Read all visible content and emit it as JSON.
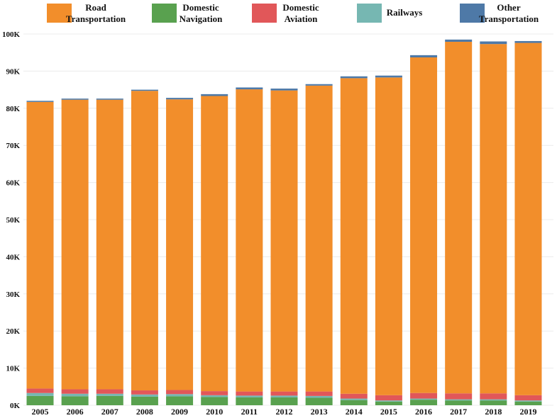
{
  "chart_data": {
    "type": "bar",
    "stacked": true,
    "categories": [
      "2005",
      "2006",
      "2007",
      "2008",
      "2009",
      "2010",
      "2011",
      "2012",
      "2013",
      "2014",
      "2015",
      "2016",
      "2017",
      "2018",
      "2019"
    ],
    "yticks": [
      {
        "value": 0,
        "label": "0K"
      },
      {
        "value": 10000,
        "label": "10K"
      },
      {
        "value": 20000,
        "label": "20K"
      },
      {
        "value": 30000,
        "label": "30K"
      },
      {
        "value": 40000,
        "label": "40K"
      },
      {
        "value": 50000,
        "label": "50K"
      },
      {
        "value": 60000,
        "label": "60K"
      },
      {
        "value": 70000,
        "label": "70K"
      },
      {
        "value": 80000,
        "label": "80K"
      },
      {
        "value": 90000,
        "label": "90K"
      },
      {
        "value": 100000,
        "label": "100K"
      }
    ],
    "ylim": [
      0,
      103000
    ],
    "grid": true,
    "legend_position": "top",
    "series": [
      {
        "name": "Domestic Navigation",
        "legend_lines": [
          "Domestic",
          "Navigation"
        ],
        "color": "#59a14f",
        "values": [
          2500,
          2400,
          2500,
          2300,
          2400,
          2200,
          2100,
          2100,
          2000,
          1400,
          1000,
          1500,
          1300,
          1300,
          1000
        ]
      },
      {
        "name": "Railways",
        "legend_lines": [
          "Railways"
        ],
        "color": "#76b7b2",
        "values": [
          800,
          700,
          600,
          600,
          600,
          500,
          500,
          500,
          500,
          400,
          300,
          300,
          300,
          300,
          300
        ]
      },
      {
        "name": "Domestic Aviation",
        "legend_lines": [
          "Domestic",
          "Aviation"
        ],
        "color": "#e15759",
        "values": [
          1200,
          1200,
          1200,
          1100,
          1100,
          1100,
          1100,
          1100,
          1200,
          1300,
          1400,
          1500,
          1600,
          1600,
          1400
        ]
      },
      {
        "name": "Road Transportation",
        "legend_lines": [
          "Road",
          "Transportation"
        ],
        "color": "#f28e2b",
        "values": [
          77200,
          78000,
          78000,
          80700,
          78300,
          79500,
          81400,
          81100,
          82400,
          85000,
          85600,
          90400,
          94700,
          94100,
          94900
        ]
      },
      {
        "name": "Other Transportation",
        "legend_lines": [
          "Other",
          "Transportation"
        ],
        "color": "#4e79a7",
        "values": [
          300,
          300,
          300,
          300,
          400,
          500,
          500,
          500,
          400,
          500,
          500,
          600,
          600,
          700,
          500
        ]
      }
    ],
    "legend_order": [
      "Road Transportation",
      "Domestic Navigation",
      "Domestic Aviation",
      "Railways",
      "Other Transportation"
    ]
  }
}
